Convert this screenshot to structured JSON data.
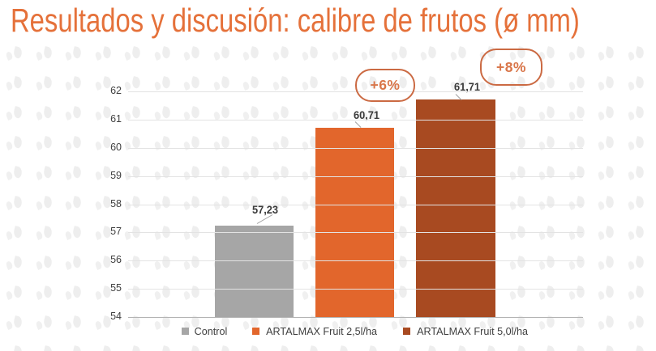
{
  "slide": {
    "title": "Resultados y discusión: calibre de frutos (ø mm)"
  },
  "chart_data": {
    "type": "bar",
    "title": "Resultados y discusión: calibre de frutos (ø mm)",
    "categories": [
      "Control",
      "ARTALMAX Fruit 2,5l/ha",
      "ARTALMAX Fruit 5,0l/ha"
    ],
    "values": [
      57.23,
      60.71,
      61.71
    ],
    "value_labels": [
      "57,23",
      "60,71",
      "61,71"
    ],
    "colors": [
      "#a6a6a6",
      "#e2662c",
      "#a84a21"
    ],
    "ylim": [
      54,
      62
    ],
    "yticks": [
      54,
      55,
      56,
      57,
      58,
      59,
      60,
      61,
      62
    ],
    "grid": true,
    "legend_position": "bottom",
    "annotations": [
      {
        "label": "+6%",
        "target": "ARTALMAX Fruit 2,5l/ha"
      },
      {
        "label": "+8%",
        "target": "ARTALMAX Fruit 5,0l/ha"
      }
    ]
  },
  "theme": {
    "title_color": "#e5713a",
    "bubble_border_color": "#cb6a43",
    "bubble_text_color": "#d9764a",
    "gridline_color": "#e3e3e3",
    "axis_color": "#b3b3b3",
    "tick_text_color": "#3f3f3f"
  }
}
